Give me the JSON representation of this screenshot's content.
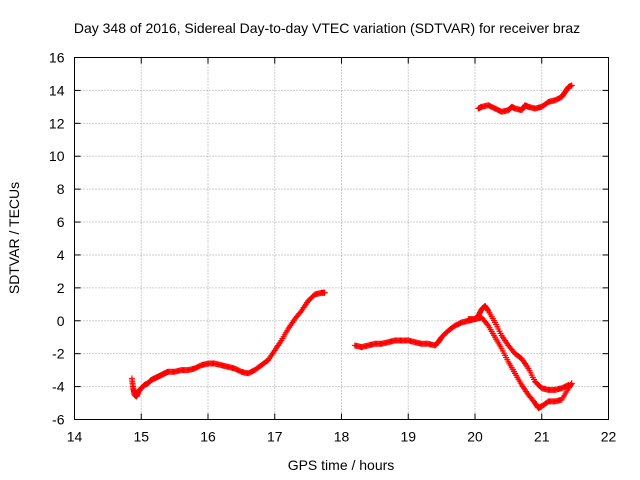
{
  "chart_data": {
    "type": "scatter",
    "title": "Day 348 of 2016, Sidereal Day-to-day VTEC variation (SDTVAR) for receiver braz",
    "xlabel": "GPS time / hours",
    "ylabel": "SDTVAR / TECUs",
    "xlim": [
      14,
      22
    ],
    "ylim": [
      -6,
      16
    ],
    "xticks": [
      "14",
      "15",
      "16",
      "17",
      "18",
      "19",
      "20",
      "21",
      "22"
    ],
    "yticks": [
      "-6",
      "-4",
      "-2",
      "0",
      "2",
      "4",
      "6",
      "8",
      "10",
      "12",
      "14",
      "16"
    ],
    "grid": true,
    "marker": "plus",
    "color": "#ff0000",
    "series": [
      {
        "name": "arc-1",
        "points": [
          [
            14.86,
            -3.5
          ],
          [
            14.88,
            -4.1
          ],
          [
            14.9,
            -4.5
          ],
          [
            14.93,
            -4.6
          ],
          [
            14.96,
            -4.3
          ],
          [
            15.0,
            -4.1
          ],
          [
            15.05,
            -3.9
          ],
          [
            15.1,
            -3.8
          ],
          [
            15.15,
            -3.6
          ],
          [
            15.2,
            -3.5
          ],
          [
            15.25,
            -3.4
          ],
          [
            15.3,
            -3.3
          ],
          [
            15.35,
            -3.2
          ],
          [
            15.4,
            -3.1
          ],
          [
            15.5,
            -3.1
          ],
          [
            15.6,
            -3.0
          ],
          [
            15.7,
            -3.0
          ],
          [
            15.8,
            -2.9
          ],
          [
            15.9,
            -2.7
          ],
          [
            16.0,
            -2.6
          ],
          [
            16.1,
            -2.6
          ],
          [
            16.2,
            -2.7
          ],
          [
            16.3,
            -2.8
          ],
          [
            16.4,
            -2.9
          ],
          [
            16.5,
            -3.1
          ],
          [
            16.6,
            -3.2
          ],
          [
            16.7,
            -3.0
          ],
          [
            16.8,
            -2.7
          ],
          [
            16.9,
            -2.4
          ],
          [
            17.0,
            -1.8
          ],
          [
            17.1,
            -1.2
          ],
          [
            17.2,
            -0.5
          ],
          [
            17.3,
            0.1
          ],
          [
            17.4,
            0.6
          ],
          [
            17.5,
            1.2
          ],
          [
            17.6,
            1.6
          ],
          [
            17.7,
            1.7
          ],
          [
            17.75,
            1.7
          ]
        ]
      },
      {
        "name": "arc-2",
        "points": [
          [
            18.2,
            -1.5
          ],
          [
            18.3,
            -1.6
          ],
          [
            18.4,
            -1.5
          ],
          [
            18.5,
            -1.4
          ],
          [
            18.6,
            -1.4
          ],
          [
            18.7,
            -1.3
          ],
          [
            18.8,
            -1.2
          ],
          [
            18.9,
            -1.2
          ],
          [
            19.0,
            -1.2
          ],
          [
            19.1,
            -1.3
          ],
          [
            19.2,
            -1.4
          ],
          [
            19.3,
            -1.4
          ],
          [
            19.4,
            -1.5
          ],
          [
            19.45,
            -1.3
          ],
          [
            19.5,
            -1.0
          ],
          [
            19.6,
            -0.6
          ],
          [
            19.7,
            -0.3
          ],
          [
            19.8,
            -0.1
          ],
          [
            19.9,
            0.0
          ],
          [
            20.0,
            0.1
          ],
          [
            20.05,
            0.3
          ],
          [
            20.1,
            0.7
          ],
          [
            20.15,
            0.9
          ],
          [
            20.2,
            0.6
          ],
          [
            20.3,
            -0.1
          ],
          [
            20.4,
            -0.9
          ],
          [
            20.5,
            -1.5
          ],
          [
            20.6,
            -2.0
          ],
          [
            20.7,
            -2.3
          ],
          [
            20.8,
            -2.9
          ],
          [
            20.9,
            -3.7
          ],
          [
            21.0,
            -4.1
          ],
          [
            21.1,
            -4.2
          ],
          [
            21.2,
            -4.2
          ],
          [
            21.3,
            -4.1
          ],
          [
            21.4,
            -3.9
          ]
        ]
      },
      {
        "name": "arc-3",
        "points": [
          [
            19.9,
            0.1
          ],
          [
            20.0,
            0.1
          ],
          [
            20.1,
            0.2
          ],
          [
            20.2,
            -0.3
          ],
          [
            20.3,
            -1.0
          ],
          [
            20.4,
            -1.7
          ],
          [
            20.5,
            -2.5
          ],
          [
            20.6,
            -3.2
          ],
          [
            20.7,
            -3.9
          ],
          [
            20.8,
            -4.5
          ],
          [
            20.9,
            -5.0
          ],
          [
            20.95,
            -5.3
          ],
          [
            21.0,
            -5.2
          ],
          [
            21.1,
            -4.9
          ],
          [
            21.2,
            -4.9
          ],
          [
            21.3,
            -4.8
          ],
          [
            21.4,
            -4.1
          ],
          [
            21.45,
            -3.8
          ]
        ]
      },
      {
        "name": "arc-4",
        "points": [
          [
            20.05,
            12.9
          ],
          [
            20.1,
            13.0
          ],
          [
            20.2,
            13.1
          ],
          [
            20.3,
            12.9
          ],
          [
            20.4,
            12.7
          ],
          [
            20.5,
            12.8
          ],
          [
            20.55,
            13.0
          ],
          [
            20.6,
            12.9
          ],
          [
            20.7,
            12.8
          ],
          [
            20.75,
            13.1
          ],
          [
            20.8,
            13.0
          ],
          [
            20.9,
            12.9
          ],
          [
            21.0,
            13.0
          ],
          [
            21.1,
            13.3
          ],
          [
            21.2,
            13.4
          ],
          [
            21.3,
            13.6
          ],
          [
            21.35,
            13.9
          ],
          [
            21.4,
            14.2
          ],
          [
            21.45,
            14.3
          ]
        ]
      }
    ]
  }
}
